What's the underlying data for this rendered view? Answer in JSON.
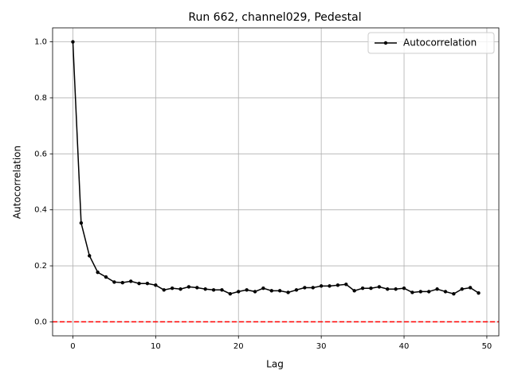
{
  "chart_data": {
    "type": "line",
    "title": "Run 662, channel029, Pedestal",
    "xlabel": "Lag",
    "ylabel": "Autocorrelation",
    "x": [
      0,
      1,
      2,
      3,
      4,
      5,
      6,
      7,
      8,
      9,
      10,
      11,
      12,
      13,
      14,
      15,
      16,
      17,
      18,
      19,
      20,
      21,
      22,
      23,
      24,
      25,
      26,
      27,
      28,
      29,
      30,
      31,
      32,
      33,
      34,
      35,
      36,
      37,
      38,
      39,
      40,
      41,
      42,
      43,
      44,
      45,
      46,
      47,
      48,
      49
    ],
    "series": [
      {
        "name": "Autocorrelation",
        "color": "#000000",
        "values": [
          1.0,
          0.353,
          0.236,
          0.177,
          0.16,
          0.142,
          0.14,
          0.145,
          0.137,
          0.137,
          0.131,
          0.114,
          0.12,
          0.117,
          0.125,
          0.122,
          0.117,
          0.114,
          0.114,
          0.1,
          0.108,
          0.114,
          0.108,
          0.12,
          0.111,
          0.111,
          0.105,
          0.114,
          0.122,
          0.122,
          0.128,
          0.128,
          0.131,
          0.134,
          0.111,
          0.12,
          0.12,
          0.125,
          0.117,
          0.117,
          0.12,
          0.105,
          0.108,
          0.108,
          0.117,
          0.108,
          0.1,
          0.117,
          0.122,
          0.103
        ]
      }
    ],
    "xlim": [
      -2.45,
      51.45
    ],
    "ylim": [
      -0.05,
      1.05
    ],
    "xticks": [
      0,
      10,
      20,
      30,
      40,
      50
    ],
    "yticks": [
      {
        "value": 0,
        "label": "0.0"
      },
      {
        "value": 0.2,
        "label": "0.2"
      },
      {
        "value": 0.4,
        "label": "0.4"
      },
      {
        "value": 0.6,
        "label": "0.6"
      },
      {
        "value": 0.8,
        "label": "0.8"
      },
      {
        "value": 1,
        "label": "1.0"
      }
    ],
    "grid": true,
    "legend": "upper right",
    "hline": 0,
    "hline_color": "#ff0000"
  }
}
